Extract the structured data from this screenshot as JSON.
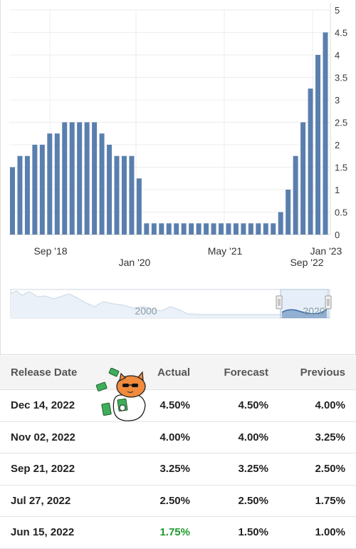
{
  "chart_data": {
    "type": "bar",
    "color": "#5a7fae",
    "y_ticks": [
      "0",
      "0.5",
      "1",
      "1.5",
      "2",
      "2.5",
      "3",
      "3.5",
      "4",
      "4.5",
      "5"
    ],
    "ylim": [
      0,
      5
    ],
    "x_labels_upper": [
      "Sep '18",
      "May '21",
      "Jan '23"
    ],
    "x_labels_lower": [
      "Jan '20",
      "Sep '22"
    ],
    "values": [
      1.5,
      1.75,
      1.75,
      2.0,
      2.0,
      2.25,
      2.25,
      2.5,
      2.5,
      2.5,
      2.5,
      2.5,
      2.25,
      2.0,
      1.75,
      1.75,
      1.75,
      1.25,
      0.25,
      0.25,
      0.25,
      0.25,
      0.25,
      0.25,
      0.25,
      0.25,
      0.25,
      0.25,
      0.25,
      0.25,
      0.25,
      0.25,
      0.25,
      0.25,
      0.25,
      0.25,
      0.5,
      1.0,
      1.75,
      2.5,
      3.25,
      4.0,
      4.5
    ],
    "navigator_labels": [
      "2000",
      "2020"
    ]
  },
  "table": {
    "headers": {
      "date": "Release Date",
      "actual": "Actual",
      "forecast": "Forecast",
      "previous": "Previous"
    },
    "rows": [
      {
        "date": "Dec 14, 2022",
        "actual": "4.50%",
        "forecast": "4.50%",
        "previous": "4.00%"
      },
      {
        "date": "Nov 02, 2022",
        "actual": "4.00%",
        "forecast": "4.00%",
        "previous": "3.25%"
      },
      {
        "date": "Sep 21, 2022",
        "actual": "3.25%",
        "forecast": "3.25%",
        "previous": "2.50%"
      },
      {
        "date": "Jul 27, 2022",
        "actual": "2.50%",
        "forecast": "2.50%",
        "previous": "1.75%"
      },
      {
        "date": "Jun 15, 2022",
        "actual": "1.75%",
        "forecast": "1.50%",
        "previous": "1.00%",
        "actual_color": "#1f9a2c"
      }
    ]
  }
}
